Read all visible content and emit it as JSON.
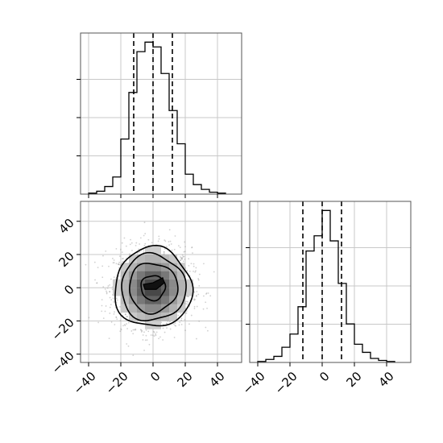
{
  "chart_data": [
    {
      "type": "histogram",
      "panel": "top-left",
      "variable": "x",
      "bin_edges": [
        -40,
        -35,
        -30,
        -25,
        -20,
        -15,
        -10,
        -5,
        0,
        5,
        10,
        15,
        20,
        25,
        30,
        35,
        40,
        45
      ],
      "counts": [
        1,
        3,
        8,
        18,
        58,
        107,
        150,
        160,
        155,
        127,
        88,
        53,
        21,
        10,
        5,
        2,
        1
      ],
      "quantiles": [
        -12,
        0,
        12
      ],
      "xlim": [
        -45,
        55
      ],
      "grid": true
    },
    {
      "type": "histogram",
      "panel": "bottom-right",
      "variable": "y",
      "bin_edges": [
        -40,
        -35,
        -30,
        -25,
        -20,
        -15,
        -10,
        -5,
        0,
        5,
        10,
        15,
        20,
        25,
        30,
        35,
        40,
        45
      ],
      "counts": [
        1,
        3,
        6,
        15,
        28,
        55,
        110,
        125,
        150,
        120,
        78,
        38,
        18,
        10,
        4,
        2,
        1
      ],
      "quantiles": [
        -12,
        0,
        12
      ],
      "xlim": [
        -45,
        55
      ],
      "xticks": [
        "−40",
        "−20",
        "0",
        "20",
        "40"
      ],
      "grid": true
    },
    {
      "type": "scatter_density",
      "panel": "bottom-left",
      "center": [
        0,
        0
      ],
      "sigma": [
        12,
        12
      ],
      "contour_radii": [
        7.5,
        15,
        20,
        24
      ],
      "xlim": [
        -45,
        55
      ],
      "ylim": [
        -45,
        52
      ],
      "xticks": [
        "−40",
        "−20",
        "0",
        "20",
        "40"
      ],
      "yticks": [
        "−40",
        "−20",
        "0",
        "20",
        "40"
      ],
      "grid": true
    }
  ]
}
